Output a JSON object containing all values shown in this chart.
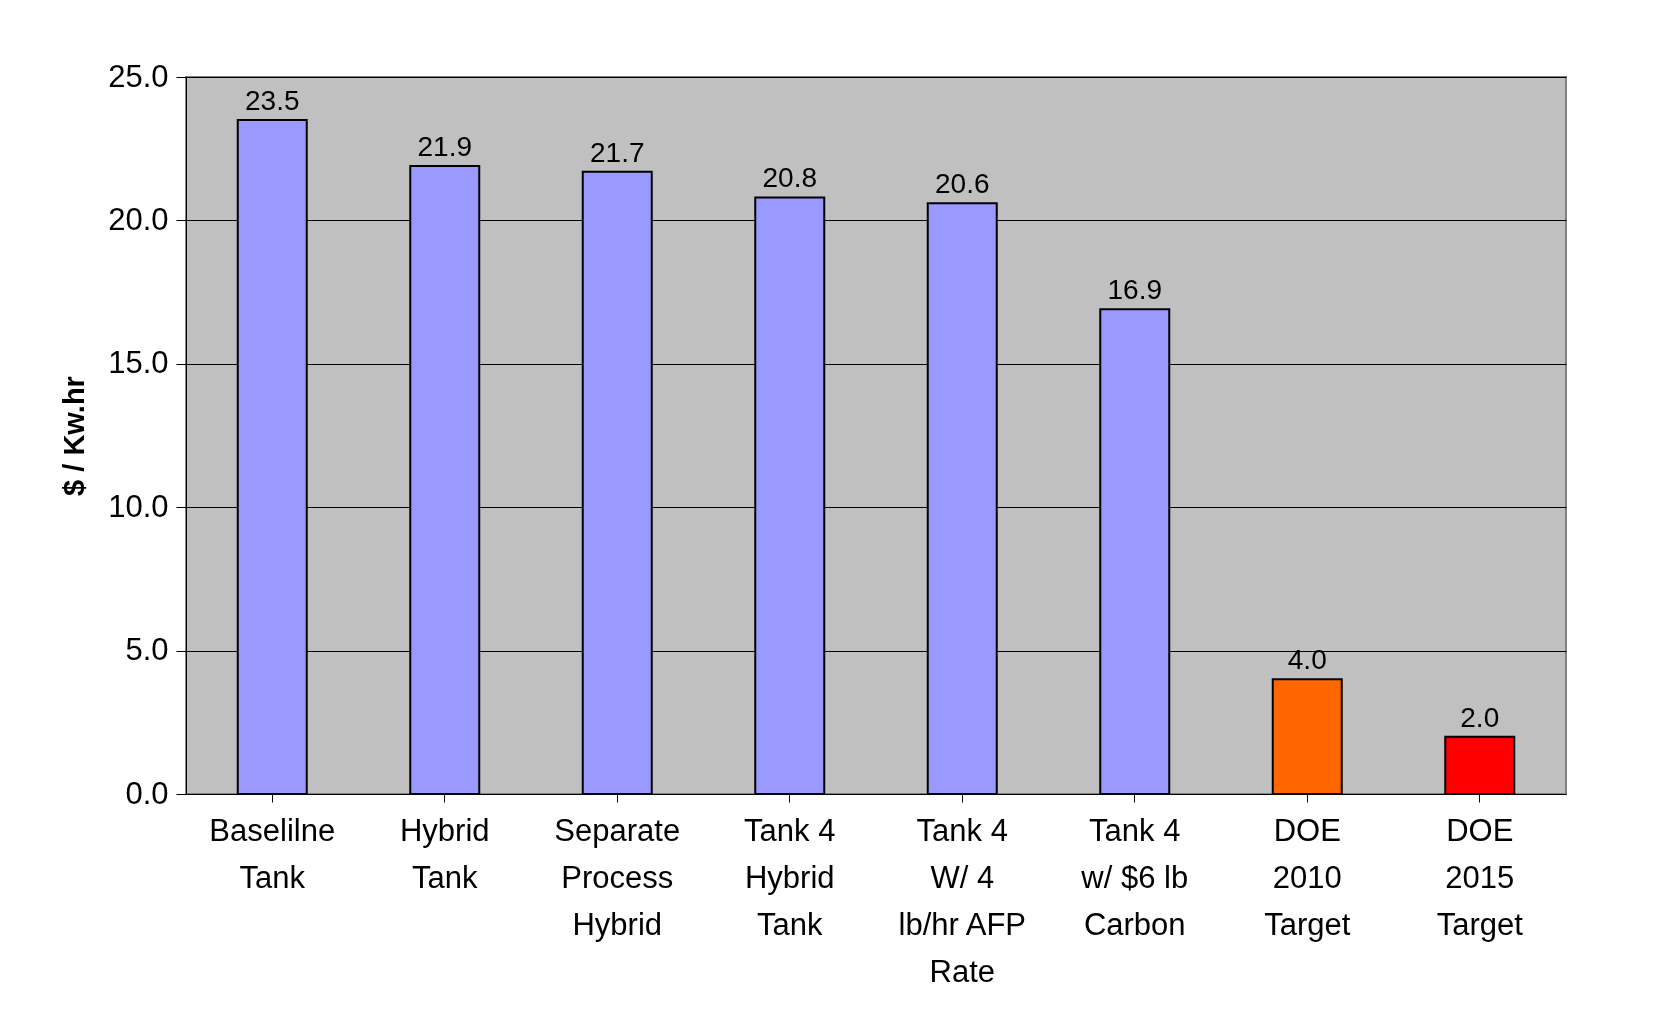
{
  "chart_data": {
    "type": "bar",
    "ylabel": "$ / Kw.hr",
    "categories": [
      "Baselilne\nTank",
      "Hybrid\nTank",
      "Separate\nProcess\nHybrid",
      "Tank 4\nHybrid\nTank",
      "Tank 4\nW/ 4\nlb/hr AFP\nRate",
      "Tank 4\nw/  $6 lb\nCarbon",
      "DOE\n2010\nTarget",
      "DOE\n2015\nTarget"
    ],
    "values": [
      23.5,
      21.9,
      21.7,
      20.8,
      20.6,
      16.9,
      4.0,
      2.0
    ],
    "colors": [
      "#9999ff",
      "#9999ff",
      "#9999ff",
      "#9999ff",
      "#9999ff",
      "#9999ff",
      "#ff6600",
      "#ff0000"
    ],
    "ylim": [
      0,
      25
    ],
    "yticks": [
      {
        "value": 0,
        "label": "0.0"
      },
      {
        "value": 5,
        "label": "5.0"
      },
      {
        "value": 10,
        "label": "10.0"
      },
      {
        "value": 15,
        "label": "15.0"
      },
      {
        "value": 20,
        "label": "20.0"
      },
      {
        "value": 25,
        "label": "25.0"
      }
    ],
    "grid": "y",
    "value_labels": [
      "23.5",
      "21.9",
      "21.7",
      "20.8",
      "20.6",
      "16.9",
      "4.0",
      "2.0"
    ]
  }
}
